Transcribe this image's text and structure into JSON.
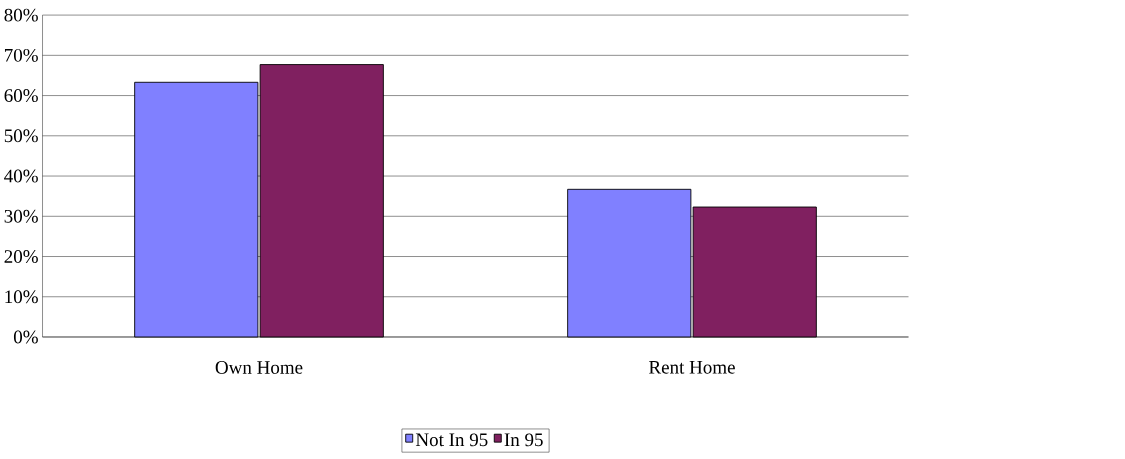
{
  "chart_data": {
    "type": "bar",
    "categories": [
      "Own Home",
      "Rent Home"
    ],
    "series": [
      {
        "name": "Not In 95",
        "color": "#8080ff",
        "values": [
          63.3,
          36.7
        ]
      },
      {
        "name": "In 95",
        "color": "#802060",
        "values": [
          67.7,
          32.3
        ]
      }
    ],
    "ylim": [
      0,
      80
    ],
    "yticks": [
      {
        "value": 0,
        "label": "0%"
      },
      {
        "value": 10,
        "label": "10%"
      },
      {
        "value": 20,
        "label": "20%"
      },
      {
        "value": 30,
        "label": "30%"
      },
      {
        "value": 40,
        "label": "40%"
      },
      {
        "value": 50,
        "label": "50%"
      },
      {
        "value": 60,
        "label": "60%"
      },
      {
        "value": 70,
        "label": "70%"
      },
      {
        "value": 80,
        "label": "80%"
      }
    ],
    "grid": "y",
    "legend": "bottom"
  }
}
